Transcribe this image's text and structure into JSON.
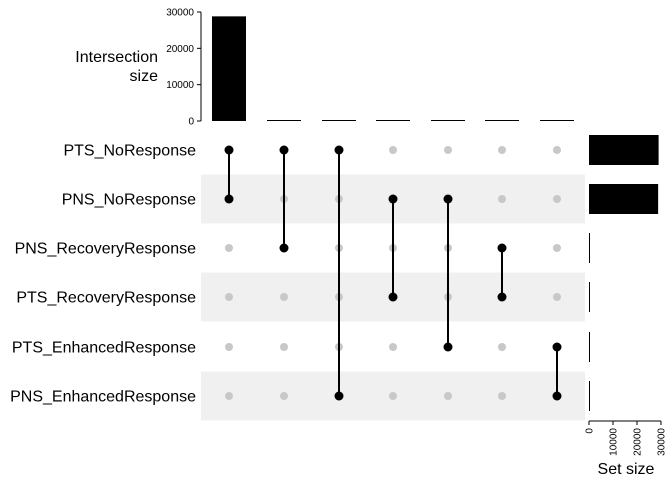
{
  "chart_data": {
    "type": "bar",
    "chart_kind": "upset",
    "sets": [
      "PTS_NoResponse",
      "PNS_NoResponse",
      "PNS_RecoveryResponse",
      "PTS_RecoveryResponse",
      "PTS_EnhancedResponse",
      "PNS_EnhancedResponse"
    ],
    "set_sizes": [
      29000,
      28800,
      150,
      150,
      100,
      100
    ],
    "intersections": [
      {
        "members": [
          "PTS_NoResponse",
          "PNS_NoResponse"
        ],
        "size": 28800
      },
      {
        "members": [
          "PTS_NoResponse",
          "PNS_RecoveryResponse"
        ],
        "size": 100
      },
      {
        "members": [
          "PTS_NoResponse",
          "PNS_EnhancedResponse"
        ],
        "size": 100
      },
      {
        "members": [
          "PNS_NoResponse",
          "PTS_RecoveryResponse"
        ],
        "size": 80
      },
      {
        "members": [
          "PNS_NoResponse",
          "PTS_EnhancedResponse"
        ],
        "size": 80
      },
      {
        "members": [
          "PNS_RecoveryResponse",
          "PTS_RecoveryResponse"
        ],
        "size": 60
      },
      {
        "members": [
          "PTS_EnhancedResponse",
          "PNS_EnhancedResponse"
        ],
        "size": 60
      }
    ],
    "intersection_axis": {
      "label_line1": "Intersection",
      "label_line2": "size",
      "ylim": [
        0,
        30000
      ],
      "ticks": [
        "0",
        "10000",
        "20000",
        "30000"
      ]
    },
    "set_axis": {
      "label": "Set size",
      "xlim": [
        0,
        30000
      ],
      "ticks": [
        "0",
        "10000",
        "20000",
        "30000"
      ]
    },
    "colors": {
      "bar": "#000000",
      "dot_active": "#000000",
      "dot_inactive": "#c8c8c8",
      "stripe": "#f0f0f0"
    }
  }
}
